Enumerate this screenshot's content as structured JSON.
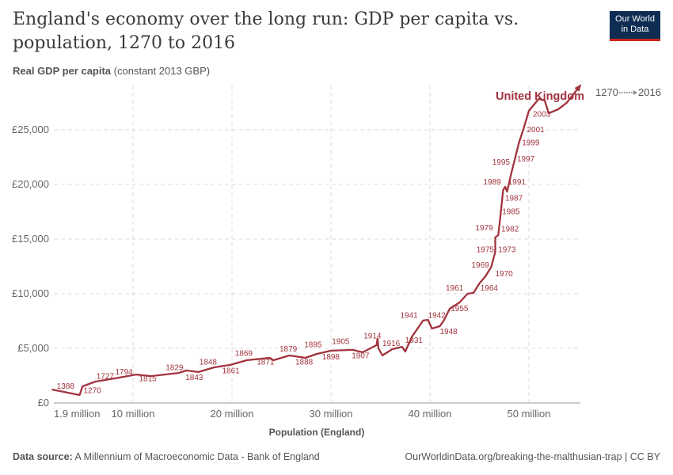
{
  "title": "England's economy over the long run: GDP per capita vs. population, 1270 to 2016",
  "subtitle_bold": "Real GDP per capita",
  "subtitle_rest": "(constant 2013 GBP)",
  "logo": {
    "line1": "Our World",
    "line2": "in Data"
  },
  "footer": {
    "source_label": "Data source:",
    "source": "A Millennium of Macroeconomic Data - Bank of England",
    "url": "OurWorldinData.org/breaking-the-malthusian-trap | CC BY"
  },
  "colors": {
    "series": "#a2333e",
    "grid": "#dddddd"
  },
  "chart_data": {
    "type": "line",
    "xlabel": "Population (England)",
    "ylabel": "Real GDP per capita (constant 2013 GBP)",
    "xlim": [
      1.9,
      55.5
    ],
    "ylim": [
      0,
      29000
    ],
    "x_ticks": [
      {
        "v": 1.9,
        "label": "1.9 million"
      },
      {
        "v": 10,
        "label": "10 million"
      },
      {
        "v": 20,
        "label": "20 million"
      },
      {
        "v": 30,
        "label": "30 million"
      },
      {
        "v": 40,
        "label": "40 million"
      },
      {
        "v": 50,
        "label": "50 million"
      }
    ],
    "y_ticks": [
      {
        "v": 0,
        "label": "£0"
      },
      {
        "v": 5000,
        "label": "£5,000"
      },
      {
        "v": 10000,
        "label": "£10,000"
      },
      {
        "v": 15000,
        "label": "£15,000"
      },
      {
        "v": 20000,
        "label": "£20,000"
      },
      {
        "v": 25000,
        "label": "£25,000"
      }
    ],
    "grid": true,
    "series": [
      {
        "name": "United Kingdom",
        "points": [
          [
            1.8,
            1230
          ],
          [
            4.6,
            725
          ],
          [
            4.9,
            1520
          ],
          [
            6.2,
            1960
          ],
          [
            8.2,
            2250
          ],
          [
            10.3,
            2600
          ],
          [
            11.8,
            2460
          ],
          [
            14.6,
            2750
          ],
          [
            15.4,
            2970
          ],
          [
            16.6,
            2830
          ],
          [
            18.2,
            3260
          ],
          [
            19.8,
            3480
          ],
          [
            21.5,
            3910
          ],
          [
            23.8,
            4130
          ],
          [
            24.2,
            3910
          ],
          [
            25.8,
            4350
          ],
          [
            27.4,
            4130
          ],
          [
            28.6,
            4490
          ],
          [
            30.0,
            4780
          ],
          [
            32.2,
            4860
          ],
          [
            33.2,
            4640
          ],
          [
            34.6,
            5290
          ],
          [
            34.7,
            5870
          ],
          [
            34.8,
            5000
          ],
          [
            35.2,
            4350
          ],
          [
            36.2,
            4930
          ],
          [
            37.2,
            5140
          ],
          [
            37.5,
            4700
          ],
          [
            38.2,
            6090
          ],
          [
            39.3,
            7540
          ],
          [
            39.8,
            7610
          ],
          [
            40.2,
            6810
          ],
          [
            41.0,
            7030
          ],
          [
            41.4,
            7540
          ],
          [
            42.0,
            8620
          ],
          [
            43.0,
            9200
          ],
          [
            43.8,
            10000
          ],
          [
            44.4,
            10070
          ],
          [
            45.0,
            10940
          ],
          [
            45.6,
            11590
          ],
          [
            46.2,
            12460
          ],
          [
            46.6,
            13840
          ],
          [
            46.6,
            15150
          ],
          [
            46.9,
            15360
          ],
          [
            47.1,
            16960
          ],
          [
            47.4,
            19490
          ],
          [
            47.6,
            19780
          ],
          [
            47.8,
            19350
          ],
          [
            48.2,
            20940
          ],
          [
            48.6,
            22390
          ],
          [
            49.0,
            23840
          ],
          [
            49.4,
            24930
          ],
          [
            50.0,
            26740
          ],
          [
            51.0,
            27830
          ],
          [
            51.6,
            27680
          ],
          [
            52.0,
            26520
          ],
          [
            52.96,
            26880
          ],
          [
            53.8,
            27460
          ],
          [
            55.2,
            29060
          ]
        ]
      }
    ],
    "year_labels": [
      {
        "year": "1388",
        "x": 2.3,
        "y": 1300
      },
      {
        "year": "1270",
        "x": 5.0,
        "y": 900
      },
      {
        "year": "1727",
        "x": 6.3,
        "y": 2200
      },
      {
        "year": "1794",
        "x": 8.2,
        "y": 2600
      },
      {
        "year": "1815",
        "x": 10.6,
        "y": 2000
      },
      {
        "year": "1829",
        "x": 13.3,
        "y": 3000
      },
      {
        "year": "1843",
        "x": 15.3,
        "y": 2100
      },
      {
        "year": "1848",
        "x": 16.7,
        "y": 3500
      },
      {
        "year": "1861",
        "x": 19.0,
        "y": 2700
      },
      {
        "year": "1869",
        "x": 20.3,
        "y": 4300
      },
      {
        "year": "1871",
        "x": 22.5,
        "y": 3500
      },
      {
        "year": "1879",
        "x": 24.8,
        "y": 4700
      },
      {
        "year": "1888",
        "x": 26.4,
        "y": 3500
      },
      {
        "year": "1895",
        "x": 27.3,
        "y": 5100
      },
      {
        "year": "1898",
        "x": 29.1,
        "y": 4000
      },
      {
        "year": "1905",
        "x": 30.1,
        "y": 5400
      },
      {
        "year": "1907",
        "x": 32.1,
        "y": 4100
      },
      {
        "year": "1914",
        "x": 33.3,
        "y": 5900
      },
      {
        "year": "1916",
        "x": 35.2,
        "y": 5200
      },
      {
        "year": "1931",
        "x": 37.5,
        "y": 5500
      },
      {
        "year": "1941",
        "x": 37.0,
        "y": 7800
      },
      {
        "year": "1942",
        "x": 39.8,
        "y": 7800
      },
      {
        "year": "1948",
        "x": 41.0,
        "y": 6300
      },
      {
        "year": "1955",
        "x": 42.1,
        "y": 8400
      },
      {
        "year": "1961",
        "x": 41.6,
        "y": 10300
      },
      {
        "year": "1964",
        "x": 45.1,
        "y": 10300
      },
      {
        "year": "1969",
        "x": 44.2,
        "y": 12400
      },
      {
        "year": "1970",
        "x": 46.6,
        "y": 11600
      },
      {
        "year": "1973",
        "x": 46.9,
        "y": 13800
      },
      {
        "year": "1975",
        "x": 44.7,
        "y": 13800
      },
      {
        "year": "1979",
        "x": 44.6,
        "y": 15800
      },
      {
        "year": "1982",
        "x": 47.2,
        "y": 15700
      },
      {
        "year": "1985",
        "x": 47.3,
        "y": 17300
      },
      {
        "year": "1987",
        "x": 47.6,
        "y": 18500
      },
      {
        "year": "1989",
        "x": 45.4,
        "y": 20000
      },
      {
        "year": "1991",
        "x": 47.9,
        "y": 20000
      },
      {
        "year": "1995",
        "x": 46.3,
        "y": 21800
      },
      {
        "year": "1997",
        "x": 48.8,
        "y": 22100
      },
      {
        "year": "1999",
        "x": 49.3,
        "y": 23600
      },
      {
        "year": "2001",
        "x": 49.8,
        "y": 24800
      },
      {
        "year": "2003",
        "x": 50.4,
        "y": 26200
      }
    ],
    "legend": {
      "start": "1270",
      "end": "2016"
    }
  }
}
